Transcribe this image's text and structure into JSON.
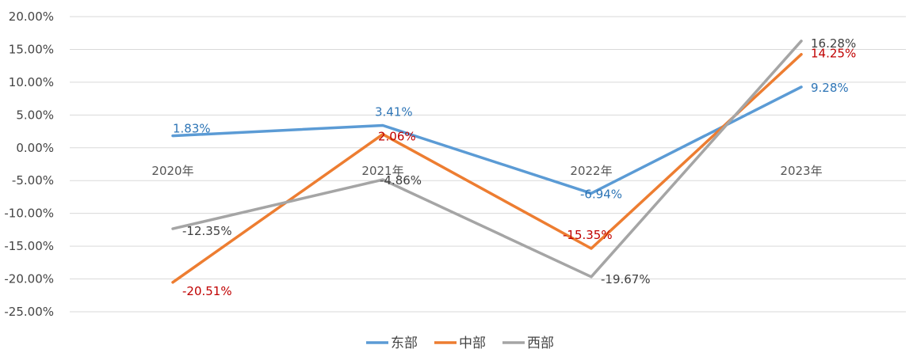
{
  "chart_data": {
    "type": "line",
    "categories": [
      "2020年",
      "2021年",
      "2022年",
      "2023年"
    ],
    "ylim": [
      -25,
      20
    ],
    "yticks": [
      20,
      15,
      10,
      5,
      0,
      -5,
      -10,
      -15,
      -20,
      -25
    ],
    "ytick_labels": [
      "20.00%",
      "15.00%",
      "10.00%",
      "5.00%",
      "0.00%",
      "-5.00%",
      "-10.00%",
      "-15.00%",
      "-20.00%",
      "-25.00%"
    ],
    "grid": true,
    "legend_position": "bottom",
    "series": [
      {
        "name": "东部",
        "color": "#5b9bd5",
        "label_color": "#2e75b6",
        "values": [
          1.83,
          3.41,
          -6.94,
          9.28
        ],
        "labels": [
          "1.83%",
          "3.41%",
          "-6.94%",
          "9.28%"
        ]
      },
      {
        "name": "中部",
        "color": "#ed7d31",
        "label_color": "#c00000",
        "values": [
          -20.51,
          2.06,
          -15.35,
          14.25
        ],
        "labels": [
          "-20.51%",
          "2.06%",
          "-15.35%",
          "14.25%"
        ]
      },
      {
        "name": "西部",
        "color": "#a5a5a5",
        "label_color": "#404040",
        "values": [
          -12.35,
          -4.86,
          -19.67,
          16.28
        ],
        "labels": [
          "-12.35%",
          "-4.86%",
          "-19.67%",
          "16.28%"
        ]
      }
    ]
  }
}
